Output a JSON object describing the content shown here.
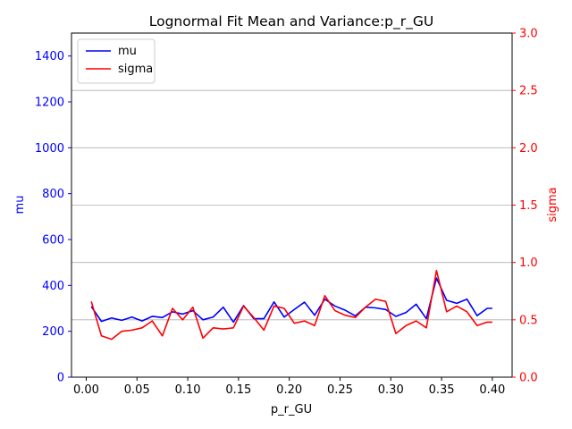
{
  "chart_data": {
    "type": "line",
    "title": "Lognormal Fit Mean and Variance:p_r_GU",
    "xlabel": "p_r_GU",
    "ylabel_left": "mu",
    "ylabel_right": "sigma",
    "xlim": [
      -0.0145,
      0.4195
    ],
    "ylim_left": [
      0,
      1500
    ],
    "ylim_right": [
      0,
      3.0
    ],
    "xticks": [
      0.0,
      0.05,
      0.1,
      0.15,
      0.2,
      0.25,
      0.3,
      0.35,
      0.4
    ],
    "xtick_labels": [
      "0.00",
      "0.05",
      "0.10",
      "0.15",
      "0.20",
      "0.25",
      "0.30",
      "0.35",
      "0.40"
    ],
    "yticks_left": [
      0,
      200,
      400,
      600,
      800,
      1000,
      1200,
      1400
    ],
    "yticks_right": [
      0.0,
      0.5,
      1.0,
      1.5,
      2.0,
      2.5,
      3.0
    ],
    "ytick_labels_right": [
      "0.0",
      "0.5",
      "1.0",
      "1.5",
      "2.0",
      "2.5",
      "3.0"
    ],
    "grid": "horizontal lines at right-axis ticks",
    "legend_position": "top-left",
    "colors": {
      "mu": "#0000ff",
      "sigma": "#ff0000",
      "left_axis": "#0000ff",
      "right_axis": "#ff0000"
    },
    "x": [
      0.005,
      0.015,
      0.025,
      0.035,
      0.045,
      0.055,
      0.065,
      0.075,
      0.085,
      0.095,
      0.105,
      0.115,
      0.125,
      0.135,
      0.145,
      0.155,
      0.165,
      0.175,
      0.185,
      0.195,
      0.205,
      0.215,
      0.225,
      0.235,
      0.245,
      0.255,
      0.265,
      0.275,
      0.285,
      0.295,
      0.305,
      0.315,
      0.325,
      0.335,
      0.345,
      0.355,
      0.365,
      0.375,
      0.385,
      0.395,
      0.4
    ],
    "series": [
      {
        "name": "mu",
        "axis": "left",
        "values": [
          308,
          243,
          258,
          248,
          262,
          245,
          265,
          260,
          285,
          275,
          290,
          250,
          262,
          305,
          240,
          312,
          255,
          255,
          328,
          262,
          295,
          327,
          270,
          340,
          310,
          292,
          267,
          305,
          302,
          295,
          265,
          282,
          318,
          255,
          432,
          335,
          322,
          340,
          268,
          300,
          300
        ]
      },
      {
        "name": "sigma",
        "axis": "right",
        "values": [
          0.66,
          0.36,
          0.33,
          0.4,
          0.41,
          0.43,
          0.49,
          0.36,
          0.6,
          0.5,
          0.61,
          0.34,
          0.43,
          0.42,
          0.43,
          0.62,
          0.52,
          0.41,
          0.62,
          0.6,
          0.47,
          0.49,
          0.45,
          0.71,
          0.58,
          0.54,
          0.52,
          0.61,
          0.68,
          0.66,
          0.38,
          0.45,
          0.49,
          0.43,
          0.93,
          0.57,
          0.62,
          0.57,
          0.45,
          0.48,
          0.48
        ]
      }
    ]
  }
}
